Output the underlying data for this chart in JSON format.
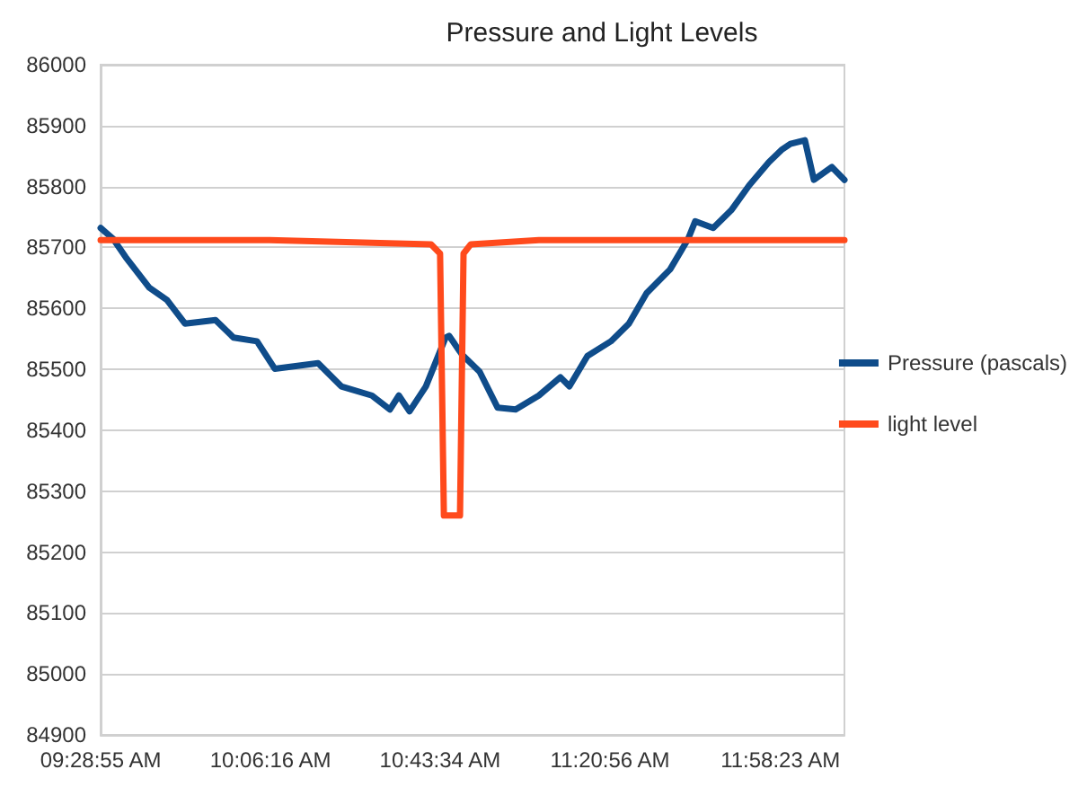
{
  "chart_data": {
    "type": "line",
    "title": "Pressure and Light Levels",
    "xlim": [
      9.4819,
      12.208
    ],
    "xticks": [
      {
        "value": 9.48194,
        "label": "09:28:55 AM"
      },
      {
        "value": 10.10444,
        "label": "10:06:16 AM"
      },
      {
        "value": 10.72611,
        "label": "10:43:34 AM"
      },
      {
        "value": 11.34889,
        "label": "11:20:56 AM"
      },
      {
        "value": 11.97306,
        "label": "11:58:23 AM"
      }
    ],
    "ylim": [
      84900,
      86000
    ],
    "yticks": [
      84900,
      85000,
      85100,
      85200,
      85300,
      85400,
      85500,
      85600,
      85700,
      85800,
      85900,
      86000
    ],
    "grid": "y",
    "legend": "right",
    "marker": "none",
    "line_style": "solid",
    "series": [
      {
        "name": "Pressure (pascals)",
        "color": "#0f4c8a",
        "x": [
          9.482,
          9.528,
          9.574,
          9.66,
          9.725,
          9.791,
          9.903,
          9.969,
          10.055,
          10.12,
          10.279,
          10.364,
          10.476,
          10.542,
          10.575,
          10.614,
          10.674,
          10.746,
          10.759,
          10.805,
          10.871,
          10.937,
          11.003,
          11.088,
          11.167,
          11.2,
          11.266,
          11.352,
          11.418,
          11.483,
          11.569,
          11.635,
          11.661,
          11.727,
          11.793,
          11.859,
          11.931,
          11.977,
          12.01,
          12.063,
          12.096,
          12.162,
          12.208
        ],
        "values": [
          85732,
          85714,
          85684,
          85634,
          85614,
          85575,
          85581,
          85552,
          85546,
          85501,
          85510,
          85472,
          85457,
          85434,
          85457,
          85431,
          85472,
          85552,
          85555,
          85525,
          85496,
          85437,
          85434,
          85457,
          85487,
          85472,
          85522,
          85546,
          85575,
          85625,
          85664,
          85714,
          85743,
          85732,
          85761,
          85802,
          85840,
          85860,
          85870,
          85876,
          85811,
          85832,
          85811
        ]
      },
      {
        "name": "light level",
        "color": "#ff4a1c",
        "x": [
          9.482,
          10.101,
          10.693,
          10.726,
          10.74,
          10.799,
          10.812,
          10.838,
          11.088,
          12.208
        ],
        "values": [
          85712,
          85712,
          85705,
          85690,
          85260,
          85260,
          85690,
          85705,
          85712,
          85712
        ]
      }
    ]
  }
}
